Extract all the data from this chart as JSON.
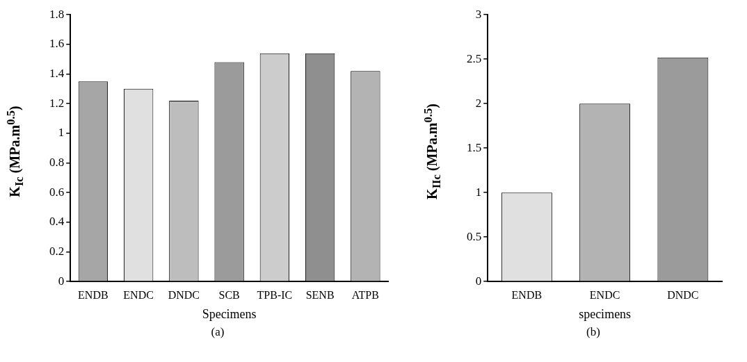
{
  "chart_data": [
    {
      "type": "bar",
      "categories": [
        "ENDB",
        "ENDC",
        "DNDC",
        "SCB",
        "TPB-IC",
        "SENB",
        "ATPB"
      ],
      "values": [
        1.35,
        1.3,
        1.22,
        1.48,
        1.54,
        1.54,
        1.42
      ],
      "colors": [
        "#a6a6a6",
        "#e0e0e0",
        "#bdbdbd",
        "#9b9b9b",
        "#cccccc",
        "#8f8f8f",
        "#b3b3b3"
      ],
      "xlabel": "Specimens",
      "ylabel": "K$_{Ic}$ (MPa.m$^{0.5}$)",
      "ylim": [
        0,
        1.8
      ],
      "yticks": [
        0,
        0.2,
        0.4,
        0.6,
        0.8,
        1,
        1.2,
        1.4,
        1.6,
        1.8
      ],
      "annotations": [
        "(a)"
      ]
    },
    {
      "type": "bar",
      "categories": [
        "ENDB",
        "ENDC",
        "DNDC"
      ],
      "values": [
        1,
        2,
        2.52
      ],
      "colors": [
        "#e0e0e0",
        "#b3b3b3",
        "#9b9b9b"
      ],
      "xlabel": "specimens",
      "ylabel": "K$_{IIc}$ (MPa.m$^{0.5}$)",
      "ylim": [
        0,
        3
      ],
      "yticks": [
        0,
        0.5,
        1,
        1.5,
        2,
        2.5,
        3
      ],
      "annotations": [
        "(b)"
      ]
    }
  ]
}
